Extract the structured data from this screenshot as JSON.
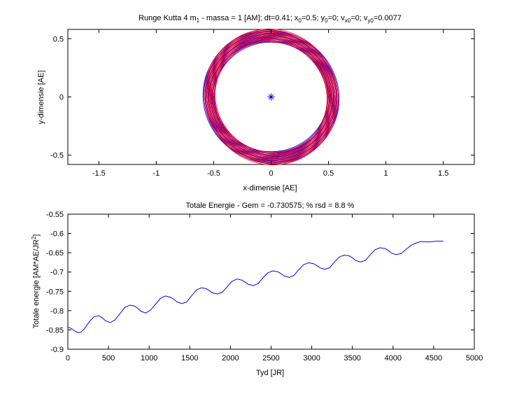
{
  "chart_data": [
    {
      "type": "line",
      "title": {
        "prefix": "Runge Kutta 4 m",
        "prefix_sub": "1",
        "mid": " - massa = 1 [AM]; dt=0.41; x",
        "x0_sub": "0",
        "x0_val": "=0.5; y",
        "y0_sub": "0",
        "y0_val": "=0; v",
        "vx_sub": "x0",
        "vx_val": "=0; v",
        "vy_sub": "y0",
        "vy_val": "=0.0077"
      },
      "xlabel": "x-dimensie [AE]",
      "ylabel": "y-dimensie [AE]",
      "xlim": [
        -1.77,
        1.77
      ],
      "ylim": [
        -0.58,
        0.58
      ],
      "xticks": [
        -1.5,
        -1,
        -0.5,
        0,
        0.5,
        1,
        1.5
      ],
      "xtick_labels": [
        "-1.5",
        "-1",
        "-0.5",
        "0",
        "0.5",
        "1",
        "1.5"
      ],
      "yticks": [
        -0.5,
        0,
        0.5
      ],
      "ytick_labels": [
        "-0.5",
        "0",
        "0.5"
      ],
      "grid": false,
      "center_marker": {
        "x": 0,
        "y": 0,
        "symbol": "asterisk",
        "color": "#0000ff"
      },
      "series": [
        {
          "color": "#0000ff",
          "orbit_radius_min": 0.5,
          "orbit_radius_max": 0.6,
          "rings": 12,
          "rotation_deg_min": 0,
          "rotation_deg_max": 20
        },
        {
          "color": "#ff0000",
          "orbit_radius_min": 0.5,
          "orbit_radius_max": 0.6,
          "rings": 12,
          "rotation_deg_min": 45,
          "rotation_deg_max": 65
        },
        {
          "color": "#b00060",
          "orbit_radius_min": 0.5,
          "orbit_radius_max": 0.6,
          "rings": 8,
          "rotation_deg_min": 25,
          "rotation_deg_max": 40
        }
      ]
    },
    {
      "type": "line",
      "title": "Totale Energie - Gem = -0.730575; % rsd = 8.8 %",
      "xlabel": "Tyd [JR]",
      "ylabel": {
        "base": "Totale energie [AM*AE/JR",
        "sup": "2",
        "close": "]"
      },
      "xlim": [
        0,
        5000
      ],
      "ylim": [
        -0.9,
        -0.55
      ],
      "xticks": [
        0,
        500,
        1000,
        1500,
        2000,
        2500,
        3000,
        3500,
        4000,
        4500,
        5000
      ],
      "xtick_labels": [
        "0",
        "500",
        "1000",
        "1500",
        "2000",
        "2500",
        "3000",
        "3500",
        "4000",
        "4500",
        "5000"
      ],
      "yticks": [
        -0.9,
        -0.85,
        -0.8,
        -0.75,
        -0.7,
        -0.65,
        -0.6,
        -0.55
      ],
      "ytick_labels": [
        "-0.9",
        "-0.85",
        "-0.8",
        "-0.75",
        "-0.7",
        "-0.65",
        "-0.6",
        "-0.55"
      ],
      "grid": false,
      "series": [
        {
          "color": "#0000ff",
          "x": [
            0,
            40,
            80,
            120,
            160,
            200,
            260,
            320,
            380,
            420,
            460,
            520,
            580,
            640,
            700,
            760,
            820,
            860,
            900,
            960,
            1020,
            1080,
            1140,
            1200,
            1260,
            1300,
            1340,
            1400,
            1460,
            1520,
            1580,
            1640,
            1700,
            1740,
            1780,
            1840,
            1900,
            1960,
            2020,
            2080,
            2140,
            2180,
            2220,
            2280,
            2340,
            2400,
            2460,
            2520,
            2580,
            2620,
            2660,
            2720,
            2780,
            2840,
            2900,
            2960,
            3020,
            3060,
            3100,
            3160,
            3220,
            3280,
            3340,
            3400,
            3460,
            3500,
            3540,
            3600,
            3660,
            3720,
            3780,
            3840,
            3900,
            3940,
            3980,
            4040,
            4100,
            4160,
            4220,
            4280,
            4340,
            4380,
            4420,
            4480,
            4540,
            4600,
            4620
          ],
          "y": [
            -0.843,
            -0.846,
            -0.852,
            -0.857,
            -0.856,
            -0.848,
            -0.83,
            -0.816,
            -0.813,
            -0.818,
            -0.826,
            -0.831,
            -0.824,
            -0.808,
            -0.792,
            -0.786,
            -0.788,
            -0.794,
            -0.802,
            -0.806,
            -0.798,
            -0.783,
            -0.768,
            -0.762,
            -0.765,
            -0.77,
            -0.777,
            -0.782,
            -0.778,
            -0.762,
            -0.747,
            -0.741,
            -0.743,
            -0.748,
            -0.754,
            -0.757,
            -0.752,
            -0.738,
            -0.724,
            -0.718,
            -0.721,
            -0.726,
            -0.732,
            -0.735,
            -0.73,
            -0.715,
            -0.702,
            -0.697,
            -0.699,
            -0.704,
            -0.71,
            -0.714,
            -0.709,
            -0.694,
            -0.681,
            -0.676,
            -0.678,
            -0.683,
            -0.689,
            -0.693,
            -0.689,
            -0.674,
            -0.661,
            -0.656,
            -0.658,
            -0.663,
            -0.67,
            -0.674,
            -0.67,
            -0.655,
            -0.642,
            -0.637,
            -0.639,
            -0.644,
            -0.651,
            -0.655,
            -0.652,
            -0.641,
            -0.631,
            -0.625,
            -0.621,
            -0.621,
            -0.622,
            -0.621,
            -0.62,
            -0.62,
            -0.62
          ]
        }
      ]
    }
  ]
}
